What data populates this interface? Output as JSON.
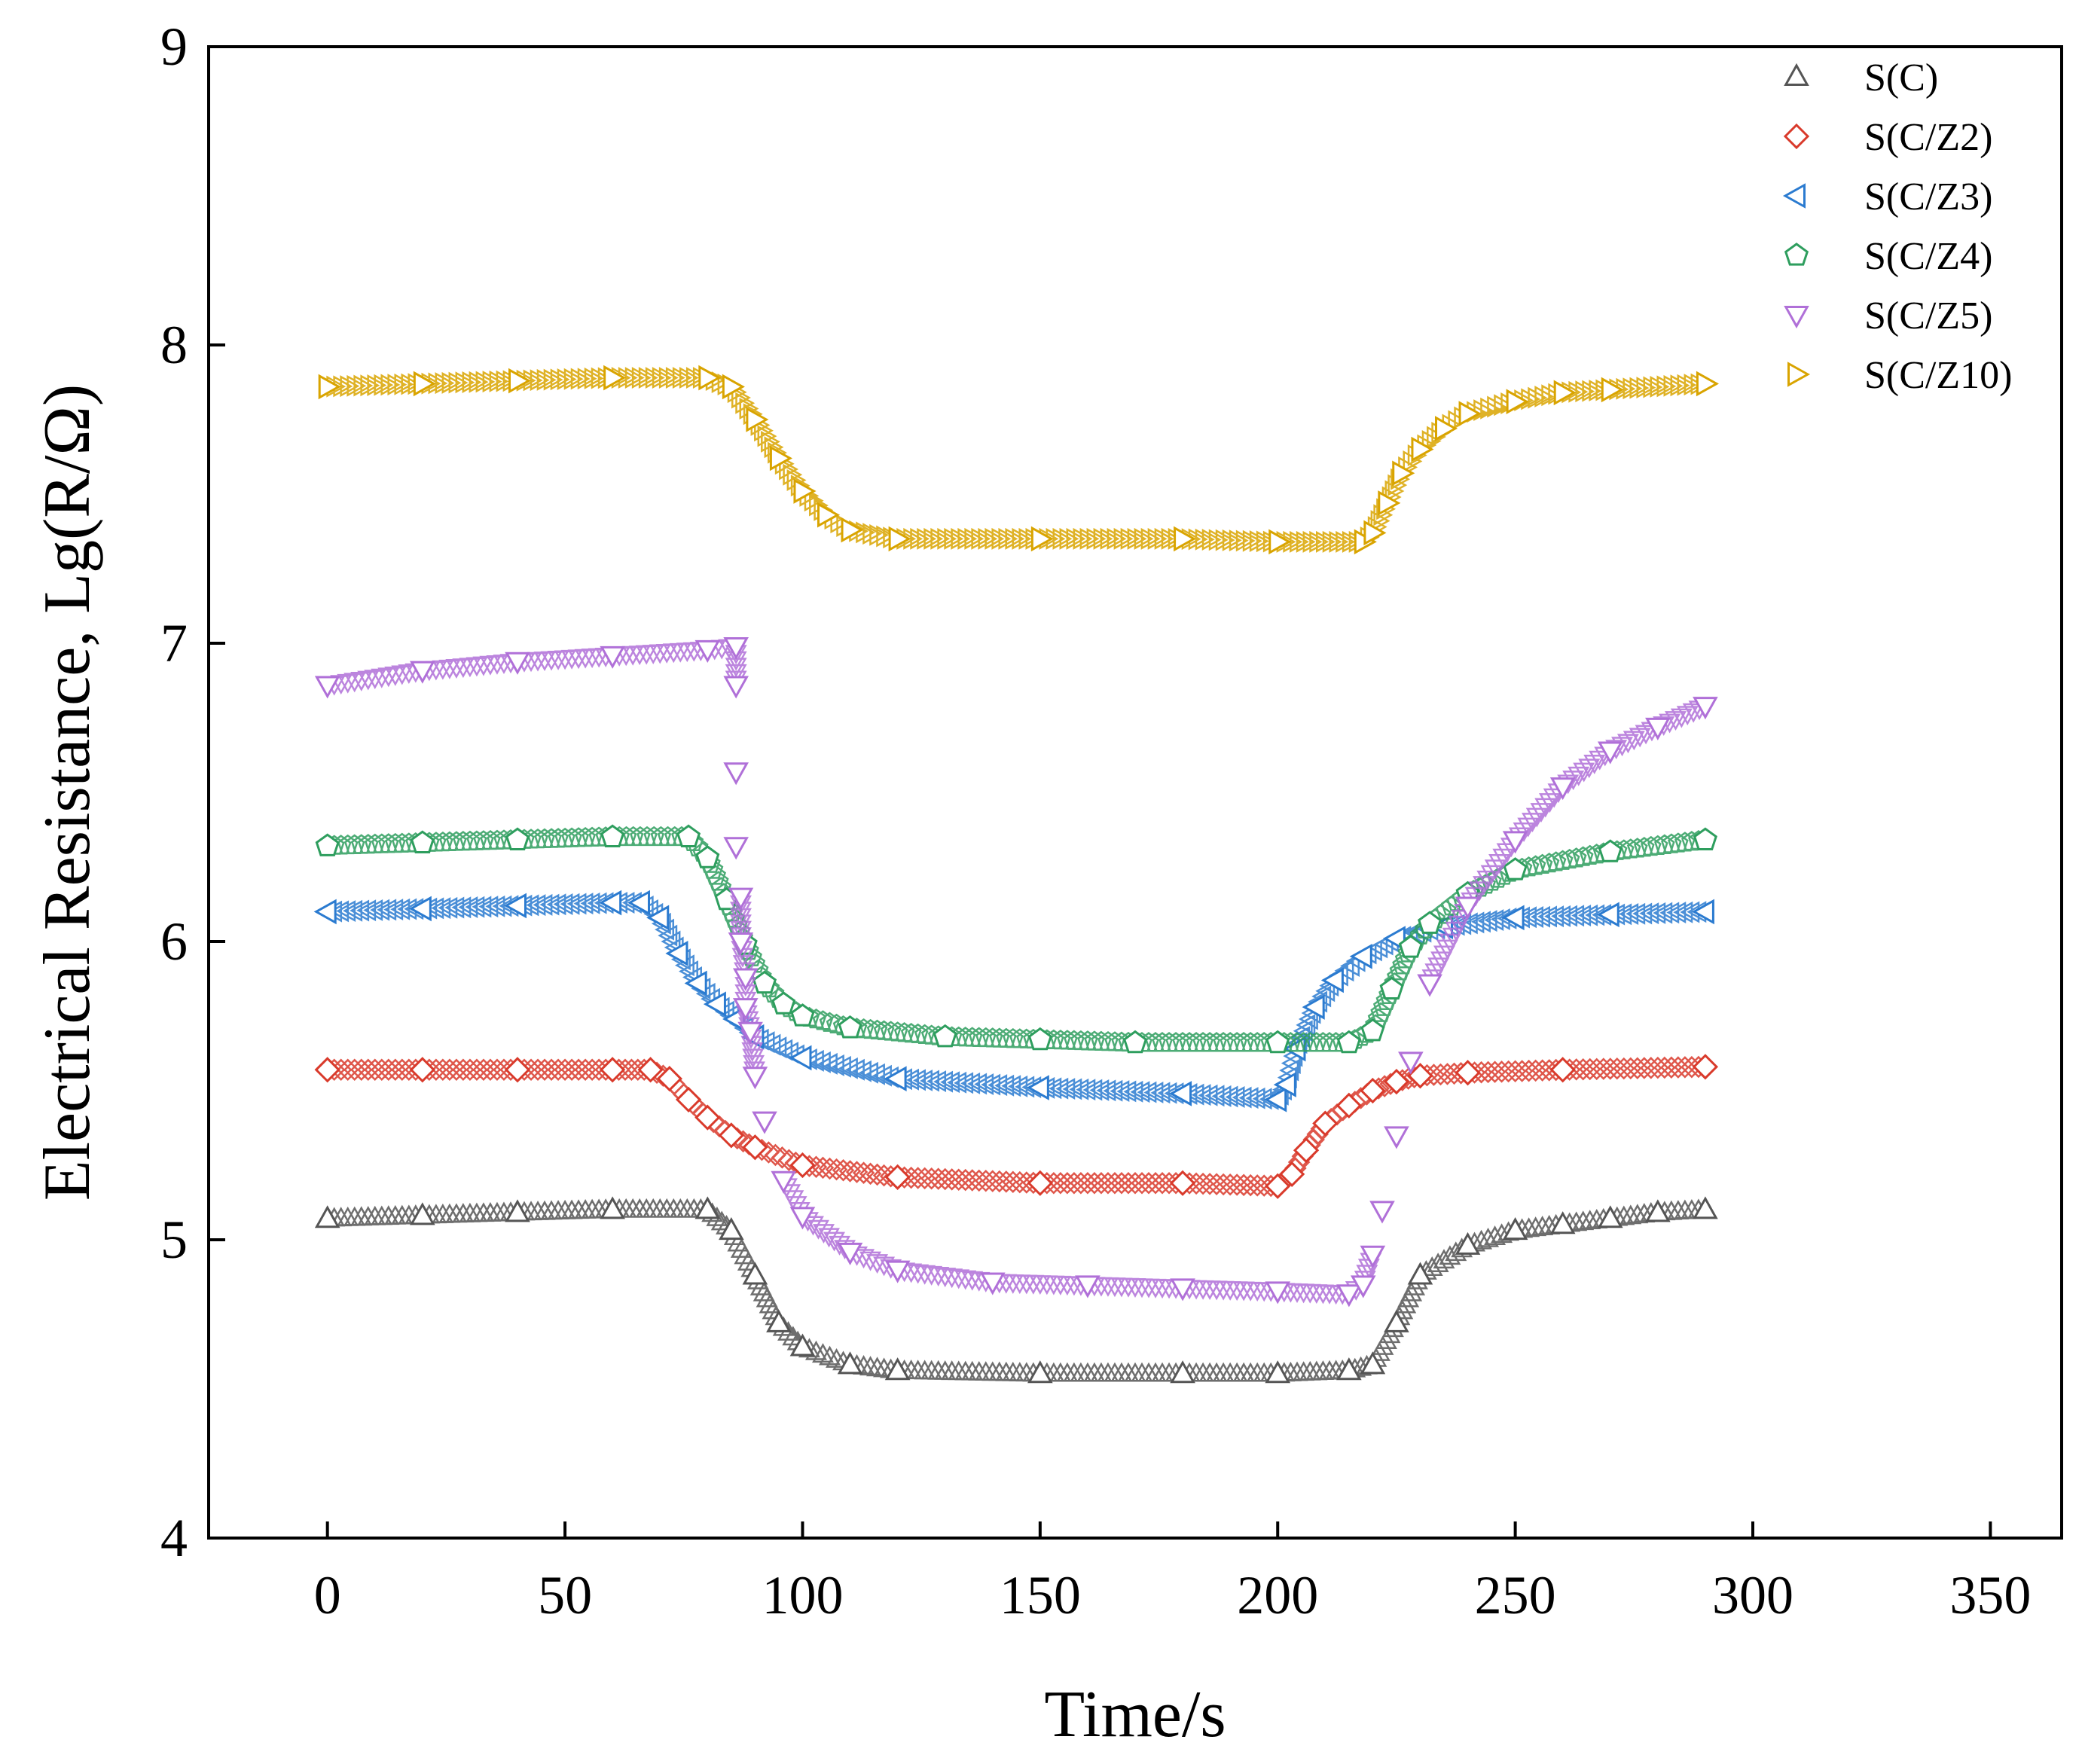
{
  "chart_data": {
    "type": "scatter",
    "title": "",
    "xlabel": "Time/s",
    "ylabel": "Electrical Resistance,  Lg(R/Ω)",
    "xlim": [
      -25,
      365
    ],
    "ylim": [
      4,
      9
    ],
    "xticks": [
      0,
      50,
      100,
      150,
      200,
      250,
      300,
      350
    ],
    "yticks": [
      4,
      5,
      6,
      7,
      8,
      9
    ],
    "legend_position": "top-right",
    "series": [
      {
        "name": "S(C)",
        "color": "#555555",
        "marker": "triangle-up",
        "x": [
          0,
          20,
          40,
          60,
          80,
          85,
          90,
          95,
          100,
          110,
          120,
          150,
          180,
          200,
          215,
          220,
          225,
          230,
          240,
          250,
          260,
          270,
          280,
          290
        ],
        "y": [
          5.07,
          5.08,
          5.09,
          5.1,
          5.1,
          5.03,
          4.88,
          4.72,
          4.64,
          4.58,
          4.56,
          4.55,
          4.55,
          4.55,
          4.56,
          4.58,
          4.72,
          4.88,
          4.98,
          5.03,
          5.05,
          5.07,
          5.09,
          5.1
        ]
      },
      {
        "name": "S(C/Z2)",
        "color": "#d93a2b",
        "marker": "diamond",
        "x": [
          0,
          20,
          40,
          60,
          68,
          72,
          76,
          80,
          85,
          90,
          100,
          120,
          150,
          180,
          200,
          203,
          206,
          210,
          215,
          220,
          225,
          230,
          240,
          260,
          290
        ],
        "y": [
          5.57,
          5.57,
          5.57,
          5.57,
          5.57,
          5.54,
          5.47,
          5.41,
          5.35,
          5.31,
          5.25,
          5.21,
          5.19,
          5.19,
          5.18,
          5.22,
          5.3,
          5.39,
          5.45,
          5.5,
          5.53,
          5.55,
          5.56,
          5.57,
          5.58
        ]
      },
      {
        "name": "S(C/Z3)",
        "color": "#2b7bd0",
        "marker": "triangle-left",
        "x": [
          0,
          20,
          40,
          60,
          66,
          70,
          74,
          78,
          82,
          86,
          90,
          100,
          120,
          150,
          180,
          200,
          202,
          204,
          208,
          212,
          218,
          225,
          235,
          250,
          270,
          290
        ],
        "y": [
          6.1,
          6.11,
          6.12,
          6.13,
          6.13,
          6.08,
          5.96,
          5.86,
          5.79,
          5.74,
          5.68,
          5.61,
          5.54,
          5.51,
          5.49,
          5.47,
          5.52,
          5.64,
          5.78,
          5.87,
          5.95,
          6.01,
          6.05,
          6.08,
          6.09,
          6.1
        ]
      },
      {
        "name": "S(C/Z4)",
        "color": "#2e9e5e",
        "marker": "pentagon",
        "x": [
          0,
          20,
          40,
          60,
          76,
          80,
          84,
          88,
          92,
          96,
          100,
          110,
          130,
          150,
          170,
          200,
          215,
          220,
          224,
          228,
          232,
          240,
          250,
          270,
          290
        ],
        "y": [
          6.32,
          6.33,
          6.34,
          6.35,
          6.35,
          6.28,
          6.14,
          5.99,
          5.86,
          5.79,
          5.75,
          5.71,
          5.68,
          5.67,
          5.66,
          5.66,
          5.66,
          5.7,
          5.84,
          5.98,
          6.06,
          6.16,
          6.24,
          6.3,
          6.34
        ]
      },
      {
        "name": "S(C/Z5)",
        "color": "#b070d8",
        "marker": "triangle-down",
        "x": [
          0,
          20,
          40,
          60,
          80,
          86,
          86,
          86,
          86,
          87,
          87,
          88,
          88,
          89,
          90,
          92,
          96,
          100,
          110,
          120,
          140,
          160,
          180,
          200,
          215,
          218,
          220,
          222,
          225,
          228,
          232,
          240,
          250,
          260,
          270,
          280,
          290
        ],
        "y": [
          6.86,
          6.91,
          6.94,
          6.96,
          6.98,
          6.99,
          6.86,
          6.57,
          6.32,
          6.15,
          6.0,
          5.88,
          5.78,
          5.7,
          5.55,
          5.4,
          5.2,
          5.08,
          4.96,
          4.9,
          4.86,
          4.85,
          4.84,
          4.83,
          4.82,
          4.85,
          4.95,
          5.1,
          5.35,
          5.6,
          5.86,
          6.12,
          6.34,
          6.52,
          6.64,
          6.72,
          6.79
        ]
      },
      {
        "name": "S(C/Z10)",
        "color": "#d9a400",
        "marker": "triangle-right",
        "x": [
          0,
          20,
          40,
          60,
          80,
          85,
          90,
          95,
          100,
          105,
          110,
          120,
          150,
          180,
          200,
          218,
          220,
          223,
          226,
          230,
          235,
          240,
          250,
          260,
          270,
          290
        ],
        "y": [
          7.86,
          7.87,
          7.88,
          7.89,
          7.89,
          7.86,
          7.75,
          7.62,
          7.51,
          7.43,
          7.38,
          7.35,
          7.35,
          7.35,
          7.34,
          7.34,
          7.37,
          7.47,
          7.57,
          7.65,
          7.72,
          7.77,
          7.81,
          7.84,
          7.85,
          7.87
        ]
      }
    ]
  }
}
